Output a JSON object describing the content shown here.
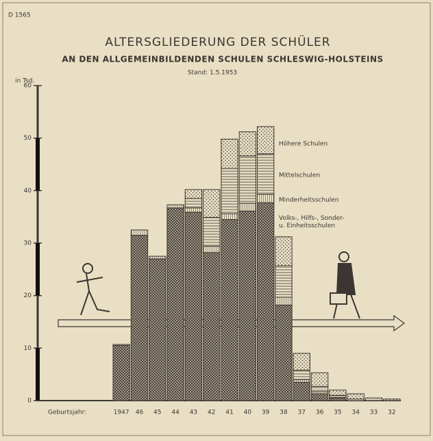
{
  "chart_data": {
    "type": "stacked-bar",
    "code": "D 1565",
    "title": "ALTERSGLIEDERUNG DER SCHÜLER",
    "subtitle": "AN DEN ALLGEMEINBILDENDEN SCHULEN SCHLESWIG-HOLSTEINS",
    "date": "Stand: 1.5.1953",
    "y_label": "in Tsd.",
    "x_label": "Geburtsjahr:",
    "categories": [
      "1947",
      "46",
      "45",
      "44",
      "43",
      "42",
      "41",
      "40",
      "39",
      "38",
      "37",
      "36",
      "35",
      "34",
      "33",
      "32"
    ],
    "series": [
      {
        "name": "Volks-, Hilfs-, Sonder-\nu. Einheitsschulen",
        "color": "#3b3631",
        "values": [
          10.5,
          31.5,
          27,
          36.7,
          35.9,
          28.2,
          34.5,
          36.1,
          37.7,
          18.2,
          3.5,
          1.3,
          0.5,
          0,
          0,
          0
        ]
      },
      {
        "name": "Minderheitsschulen",
        "color": "#3b3631",
        "values": [
          0.2,
          1,
          0.5,
          0.6,
          0.8,
          1.2,
          1.1,
          1.5,
          1.6,
          1.5,
          0.5,
          0.4,
          0.1,
          0,
          0,
          0
        ]
      },
      {
        "name": "Mittelschulen",
        "color": "#3b3631",
        "values": [
          0,
          0,
          0,
          0,
          1.8,
          5.5,
          8.6,
          9,
          7.7,
          6,
          1.8,
          1,
          0.4,
          0.3,
          0,
          0
        ]
      },
      {
        "name": "Höhere Schulen",
        "color": "#3b3631",
        "values": [
          0,
          0,
          0,
          0,
          1.7,
          5.3,
          5.6,
          4.6,
          5.2,
          5.5,
          3.2,
          2.6,
          1,
          1,
          0.5,
          0.3
        ]
      }
    ],
    "ylim": [
      0,
      60
    ],
    "yticks": [
      0,
      10,
      20,
      30,
      40,
      50,
      60
    ]
  }
}
